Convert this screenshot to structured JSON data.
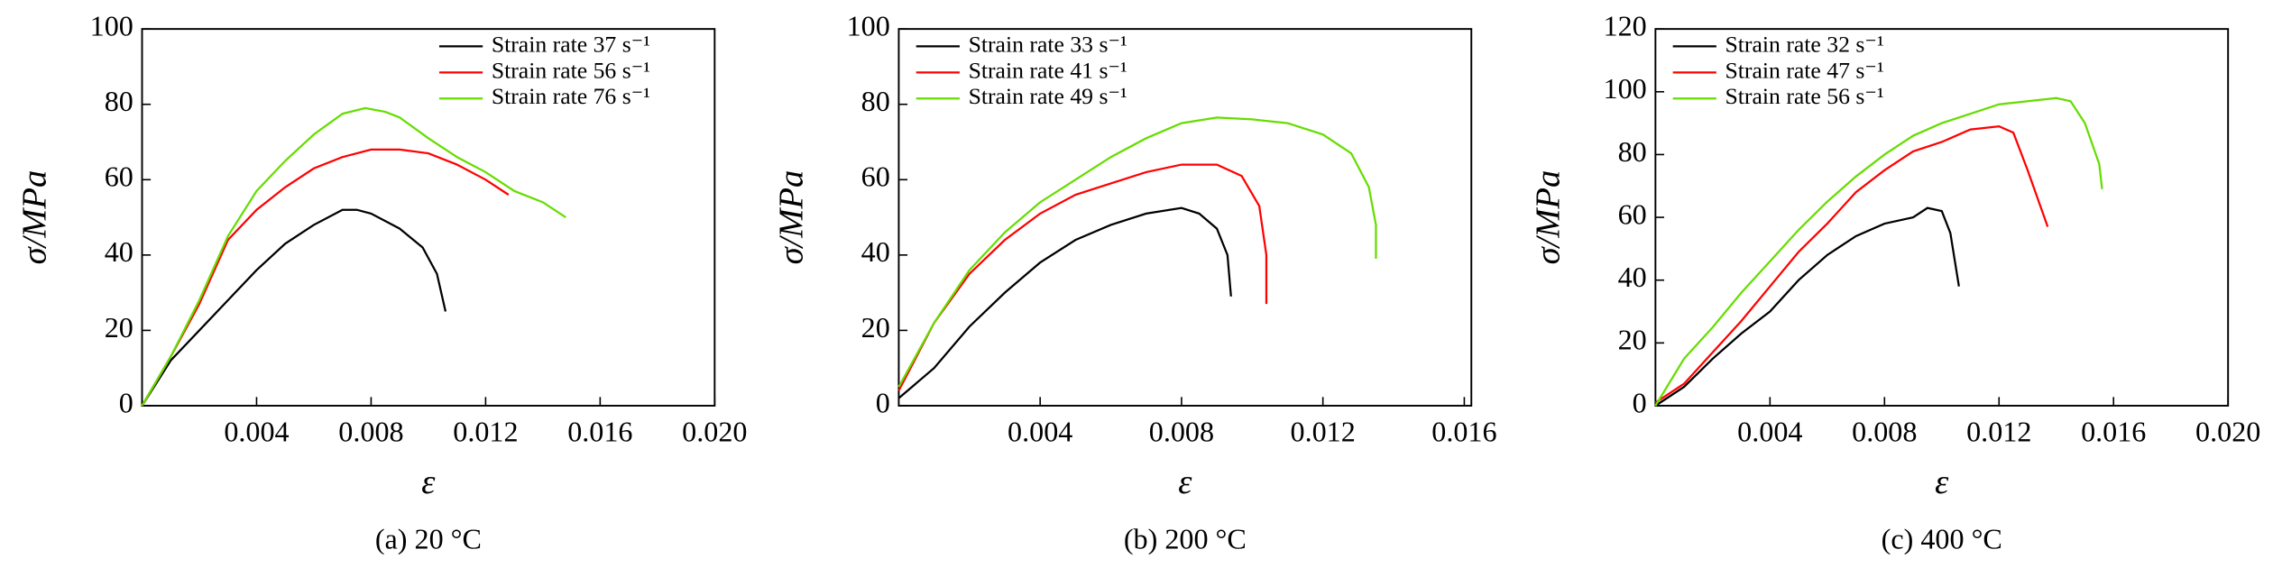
{
  "chart_data": [
    {
      "type": "line",
      "caption": "(a) 20 °C",
      "x_label": "ε",
      "y_label": "σ/MPa",
      "legend": "upper right",
      "xlim": [
        0,
        0.02
      ],
      "ylim": [
        0,
        100
      ],
      "xticks": [
        0.004,
        0.008,
        0.012,
        0.016,
        {
          "value": 0.02,
          "label": "0.020"
        }
      ],
      "yticks": [
        0,
        20,
        40,
        60,
        80,
        100
      ],
      "series": [
        {
          "name": "Strain rate 37 s⁻¹",
          "color": "#000000",
          "x": [
            0,
            0.001,
            0.002,
            0.003,
            0.004,
            0.005,
            0.006,
            0.007,
            0.0075,
            0.008,
            0.009,
            0.0098,
            0.0103,
            0.0106
          ],
          "values": [
            0,
            12,
            20,
            28,
            36,
            43,
            48,
            52,
            52,
            51,
            47,
            42,
            35,
            25
          ]
        },
        {
          "name": "Strain rate 56 s⁻¹",
          "color": "#ff0000",
          "x": [
            0,
            0.001,
            0.002,
            0.003,
            0.004,
            0.005,
            0.006,
            0.007,
            0.008,
            0.009,
            0.01,
            0.011,
            0.012,
            0.0128
          ],
          "values": [
            0,
            13,
            27,
            44,
            52,
            58,
            63,
            66,
            68,
            68,
            67,
            64,
            60,
            56
          ]
        },
        {
          "name": "Strain rate 76 s⁻¹",
          "color": "#66dd00",
          "x": [
            0,
            0.001,
            0.002,
            0.003,
            0.004,
            0.005,
            0.006,
            0.007,
            0.0078,
            0.0085,
            0.009,
            0.01,
            0.011,
            0.012,
            0.013,
            0.014,
            0.0148
          ],
          "values": [
            0,
            13,
            28,
            45,
            57,
            65,
            72,
            77.5,
            79,
            78,
            76.5,
            71,
            66,
            62,
            57,
            54,
            50
          ]
        }
      ]
    },
    {
      "type": "line",
      "caption": "(b) 200 °C",
      "x_label": "ε",
      "y_label": "σ/MPa",
      "legend": "upper left",
      "xlim": [
        0,
        0.0162
      ],
      "ylim": [
        0,
        100
      ],
      "xticks": [
        0.004,
        0.008,
        0.012,
        0.016
      ],
      "yticks": [
        0,
        20,
        40,
        60,
        80,
        100
      ],
      "series": [
        {
          "name": "Strain rate 33 s⁻¹",
          "color": "#000000",
          "x": [
            0,
            0.001,
            0.002,
            0.003,
            0.004,
            0.005,
            0.006,
            0.007,
            0.008,
            0.0085,
            0.009,
            0.0093,
            0.0094
          ],
          "values": [
            2,
            10,
            21,
            30,
            38,
            44,
            48,
            51,
            52.5,
            51,
            47,
            40,
            29
          ]
        },
        {
          "name": "Strain rate 41 s⁻¹",
          "color": "#ff0000",
          "x": [
            0,
            0.001,
            0.002,
            0.003,
            0.004,
            0.005,
            0.006,
            0.007,
            0.008,
            0.009,
            0.0097,
            0.0102,
            0.0104,
            0.0104
          ],
          "values": [
            4,
            22,
            35,
            44,
            51,
            56,
            59,
            62,
            64,
            64,
            61,
            53,
            40,
            27
          ]
        },
        {
          "name": "Strain rate 49 s⁻¹",
          "color": "#66dd00",
          "x": [
            0,
            0.001,
            0.002,
            0.003,
            0.004,
            0.005,
            0.006,
            0.007,
            0.008,
            0.009,
            0.01,
            0.011,
            0.012,
            0.0128,
            0.0133,
            0.0135,
            0.0135
          ],
          "values": [
            5,
            22,
            36,
            46,
            54,
            60,
            66,
            71,
            75,
            76.5,
            76,
            75,
            72,
            67,
            58,
            48,
            39
          ]
        }
      ]
    },
    {
      "type": "line",
      "caption": "(c) 400 °C",
      "x_label": "ε",
      "y_label": "σ/MPa",
      "legend": "upper left",
      "xlim": [
        0,
        0.02
      ],
      "ylim": [
        0,
        120
      ],
      "xticks": [
        0.004,
        0.008,
        0.012,
        0.016,
        {
          "value": 0.02,
          "label": "0.020"
        }
      ],
      "yticks": [
        0,
        20,
        40,
        60,
        80,
        100,
        120
      ],
      "series": [
        {
          "name": "Strain rate 32 s⁻¹",
          "color": "#000000",
          "x": [
            0,
            0.001,
            0.002,
            0.003,
            0.004,
            0.005,
            0.006,
            0.007,
            0.008,
            0.009,
            0.0095,
            0.01,
            0.0103,
            0.0106
          ],
          "values": [
            0,
            6,
            15,
            23,
            30,
            40,
            48,
            54,
            58,
            60,
            63,
            62,
            55,
            38
          ]
        },
        {
          "name": "Strain rate 47 s⁻¹",
          "color": "#ff0000",
          "x": [
            0,
            0.001,
            0.002,
            0.003,
            0.004,
            0.005,
            0.006,
            0.007,
            0.008,
            0.009,
            0.01,
            0.011,
            0.012,
            0.0125,
            0.013,
            0.0137
          ],
          "values": [
            1,
            7,
            17,
            27,
            38,
            49,
            58,
            68,
            75,
            81,
            84,
            88,
            89,
            87,
            75,
            57
          ]
        },
        {
          "name": "Strain rate 56 s⁻¹",
          "color": "#66dd00",
          "x": [
            0,
            0.001,
            0.002,
            0.003,
            0.004,
            0.005,
            0.006,
            0.007,
            0.008,
            0.009,
            0.01,
            0.011,
            0.012,
            0.013,
            0.014,
            0.0145,
            0.015,
            0.0155,
            0.0156
          ],
          "values": [
            0,
            15,
            25,
            36,
            46,
            56,
            65,
            73,
            80,
            86,
            90,
            93,
            96,
            97,
            98,
            97,
            90,
            77,
            69
          ]
        }
      ]
    }
  ]
}
